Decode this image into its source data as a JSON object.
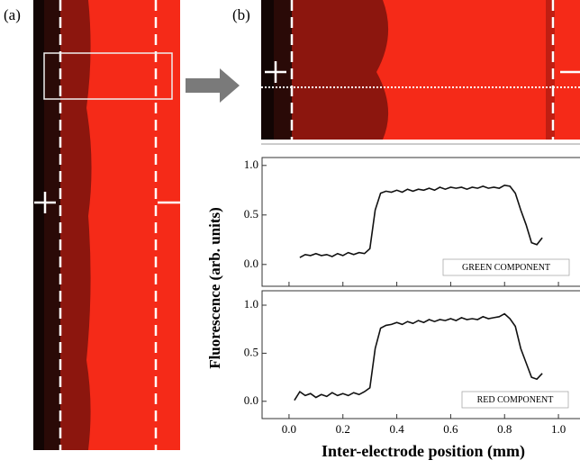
{
  "figure": {
    "panel_labels": [
      "(a)",
      "(b)"
    ],
    "ylabel": "Fluorescence (arb. units)",
    "xlabel": "Inter-electrode position (mm)"
  },
  "chart_data": [
    {
      "type": "line",
      "x": [
        0.04,
        0.06,
        0.08,
        0.1,
        0.12,
        0.14,
        0.16,
        0.18,
        0.2,
        0.22,
        0.24,
        0.26,
        0.28,
        0.3,
        0.32,
        0.34,
        0.36,
        0.38,
        0.4,
        0.42,
        0.44,
        0.46,
        0.48,
        0.5,
        0.52,
        0.54,
        0.56,
        0.58,
        0.6,
        0.62,
        0.64,
        0.66,
        0.68,
        0.7,
        0.72,
        0.74,
        0.76,
        0.78,
        0.8,
        0.82,
        0.84,
        0.86,
        0.88,
        0.9,
        0.92,
        0.94
      ],
      "series": [
        {
          "name": "GREEN COMPONENT",
          "color": "#111111",
          "values": [
            0.07,
            0.1,
            0.09,
            0.11,
            0.09,
            0.1,
            0.08,
            0.11,
            0.09,
            0.12,
            0.1,
            0.12,
            0.11,
            0.16,
            0.55,
            0.72,
            0.74,
            0.73,
            0.75,
            0.73,
            0.76,
            0.74,
            0.76,
            0.75,
            0.77,
            0.75,
            0.78,
            0.76,
            0.78,
            0.77,
            0.78,
            0.76,
            0.78,
            0.77,
            0.79,
            0.77,
            0.78,
            0.77,
            0.8,
            0.79,
            0.72,
            0.55,
            0.4,
            0.22,
            0.2,
            0.27
          ]
        }
      ],
      "xlim": [
        -0.1,
        1.08
      ],
      "ylim": [
        -0.22,
        1.08
      ],
      "yticks": [
        {
          "value": 0,
          "label": "0.0"
        },
        0.5,
        {
          "value": 1,
          "label": "1.0"
        }
      ]
    },
    {
      "type": "line",
      "x": [
        0.02,
        0.04,
        0.06,
        0.08,
        0.1,
        0.12,
        0.14,
        0.16,
        0.18,
        0.2,
        0.22,
        0.24,
        0.26,
        0.28,
        0.3,
        0.32,
        0.34,
        0.36,
        0.38,
        0.4,
        0.42,
        0.44,
        0.46,
        0.48,
        0.5,
        0.52,
        0.54,
        0.56,
        0.58,
        0.6,
        0.62,
        0.64,
        0.66,
        0.68,
        0.7,
        0.72,
        0.74,
        0.76,
        0.78,
        0.8,
        0.82,
        0.84,
        0.86,
        0.88,
        0.9,
        0.92,
        0.94
      ],
      "series": [
        {
          "name": "RED COMPONENT",
          "color": "#111111",
          "values": [
            0.01,
            0.1,
            0.06,
            0.08,
            0.04,
            0.07,
            0.05,
            0.09,
            0.06,
            0.08,
            0.06,
            0.09,
            0.07,
            0.1,
            0.14,
            0.55,
            0.76,
            0.79,
            0.8,
            0.82,
            0.8,
            0.83,
            0.81,
            0.84,
            0.82,
            0.85,
            0.83,
            0.85,
            0.84,
            0.86,
            0.84,
            0.87,
            0.85,
            0.86,
            0.85,
            0.88,
            0.86,
            0.87,
            0.88,
            0.91,
            0.86,
            0.78,
            0.55,
            0.4,
            0.25,
            0.23,
            0.29
          ]
        }
      ],
      "xlim": [
        -0.1,
        1.08
      ],
      "ylim": [
        -0.18,
        1.15
      ],
      "yticks": [
        {
          "value": 0,
          "label": "0.0"
        },
        0.5,
        {
          "value": 1,
          "label": "1.0"
        }
      ],
      "xticks": [
        {
          "value": 0,
          "label": "0.0"
        },
        0.2,
        0.4,
        0.6,
        0.8,
        {
          "value": 1,
          "label": "1.0"
        }
      ]
    }
  ]
}
